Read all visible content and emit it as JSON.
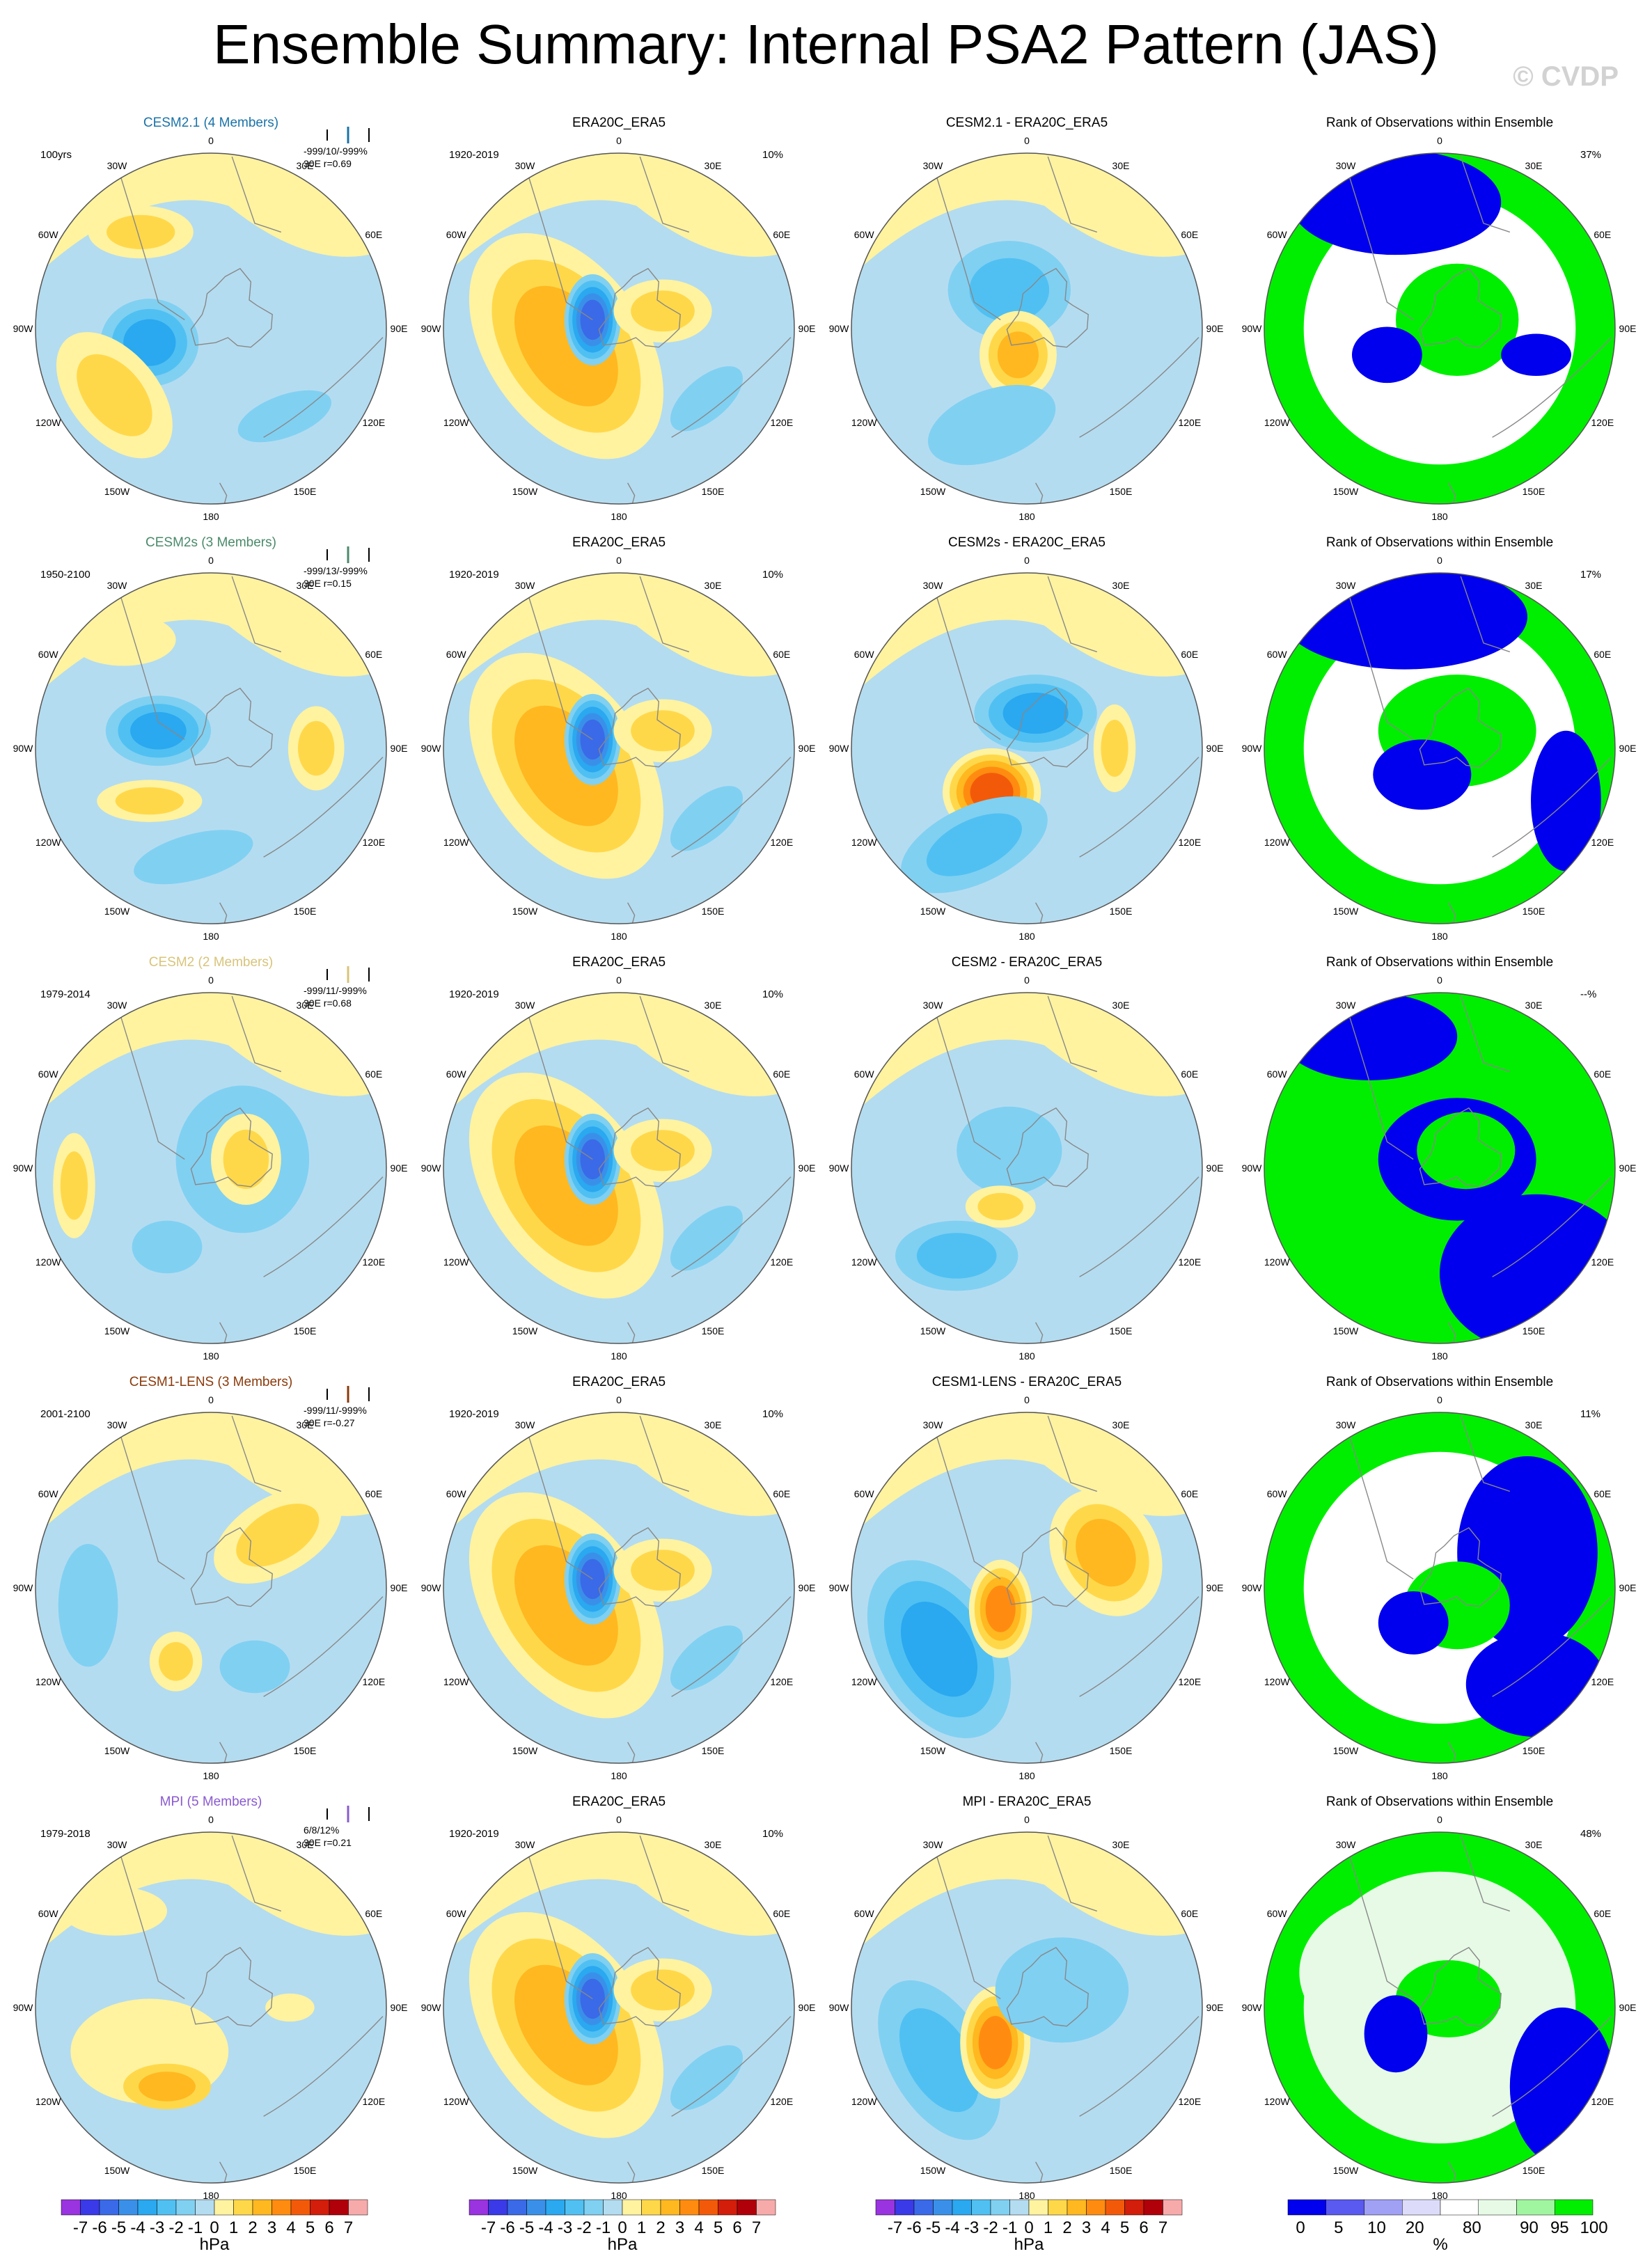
{
  "title": "Ensemble Summary: Internal PSA2 Pattern (JAS)",
  "watermark": "© CVDP",
  "colors": {
    "ocean_fill": "#b4dcf0",
    "land_line": "#888888",
    "rank_blue": "#0000ee",
    "rank_green": "#00ee00",
    "rank_white": "#ffffff",
    "rank_pale": "#e6fae6"
  },
  "longitude_labels": [
    "0",
    "30E",
    "60E",
    "90E",
    "120E",
    "150E",
    "180",
    "150W",
    "120W",
    "90W",
    "60W",
    "30W"
  ],
  "rows": [
    {
      "model": {
        "title": "CESM2.1 (4 Members)",
        "title_color": "#1a73a8",
        "period": "100yrs",
        "stats_line1": "-999/10/-999%",
        "stats_line2": "30E r=0.69"
      },
      "obs": {
        "title": "ERA20C_ERA5",
        "period": "1920-2019",
        "pct": "10%"
      },
      "diff": {
        "title": "CESM2.1 - ERA20C_ERA5"
      },
      "rank": {
        "title": "Rank of Observations within Ensemble",
        "pct": "37%"
      }
    },
    {
      "model": {
        "title": "CESM2s (3 Members)",
        "title_color": "#4a8a6a",
        "period": "1950-2100",
        "stats_line1": "-999/13/-999%",
        "stats_line2": "30E r=0.15"
      },
      "obs": {
        "title": "ERA20C_ERA5",
        "period": "1920-2019",
        "pct": "10%"
      },
      "diff": {
        "title": "CESM2s - ERA20C_ERA5"
      },
      "rank": {
        "title": "Rank of Observations within Ensemble",
        "pct": "17%"
      }
    },
    {
      "model": {
        "title": "CESM2 (2 Members)",
        "title_color": "#d8c47a",
        "period": "1979-2014",
        "stats_line1": "-999/11/-999%",
        "stats_line2": "30E r=0.68"
      },
      "obs": {
        "title": "ERA20C_ERA5",
        "period": "1920-2019",
        "pct": "10%"
      },
      "diff": {
        "title": "CESM2 - ERA20C_ERA5"
      },
      "rank": {
        "title": "Rank of Observations within Ensemble",
        "pct": "--%"
      }
    },
    {
      "model": {
        "title": "CESM1-LENS (3 Members)",
        "title_color": "#8a3a0a",
        "period": "2001-2100",
        "stats_line1": "-999/11/-999%",
        "stats_line2": "30E r=-0.27"
      },
      "obs": {
        "title": "ERA20C_ERA5",
        "period": "1920-2019",
        "pct": "10%"
      },
      "diff": {
        "title": "CESM1-LENS - ERA20C_ERA5"
      },
      "rank": {
        "title": "Rank of Observations within Ensemble",
        "pct": "11%"
      }
    },
    {
      "model": {
        "title": "MPI (5 Members)",
        "title_color": "#8a5ad0",
        "period": "1979-2018",
        "stats_line1": "6/8/12%",
        "stats_line2": "30E r=0.21"
      },
      "obs": {
        "title": "ERA20C_ERA5",
        "period": "1920-2019",
        "pct": "10%"
      },
      "diff": {
        "title": "MPI - ERA20C_ERA5"
      },
      "rank": {
        "title": "Rank of Observations within Ensemble",
        "pct": "48%"
      }
    }
  ],
  "colorbar": {
    "labels": [
      "-7",
      "-6",
      "-5",
      "-4",
      "-3",
      "-2",
      "-1",
      "0",
      "1",
      "2",
      "3",
      "4",
      "5",
      "6",
      "7"
    ],
    "colors": [
      "#9a33e0",
      "#3a3ae8",
      "#3a6ae8",
      "#3a90e8",
      "#2aa8f0",
      "#50c0f2",
      "#80d0f2",
      "#b4dcf0",
      "#fff3a0",
      "#ffd84a",
      "#ffb820",
      "#ff8c10",
      "#f25a0a",
      "#d21e0a",
      "#b0000a",
      "#f7aaaa"
    ],
    "unit": "hPa"
  },
  "rank_colorbar": {
    "labels": [
      "0",
      "5",
      "10",
      "20",
      "80",
      "90",
      "95",
      "100"
    ],
    "colors": [
      "#0000ee",
      "#5a5af0",
      "#a0a0f5",
      "#dcdcfa",
      "#ffffff",
      "#e6fae6",
      "#a0f5a0",
      "#00ee00"
    ],
    "unit": "%"
  }
}
